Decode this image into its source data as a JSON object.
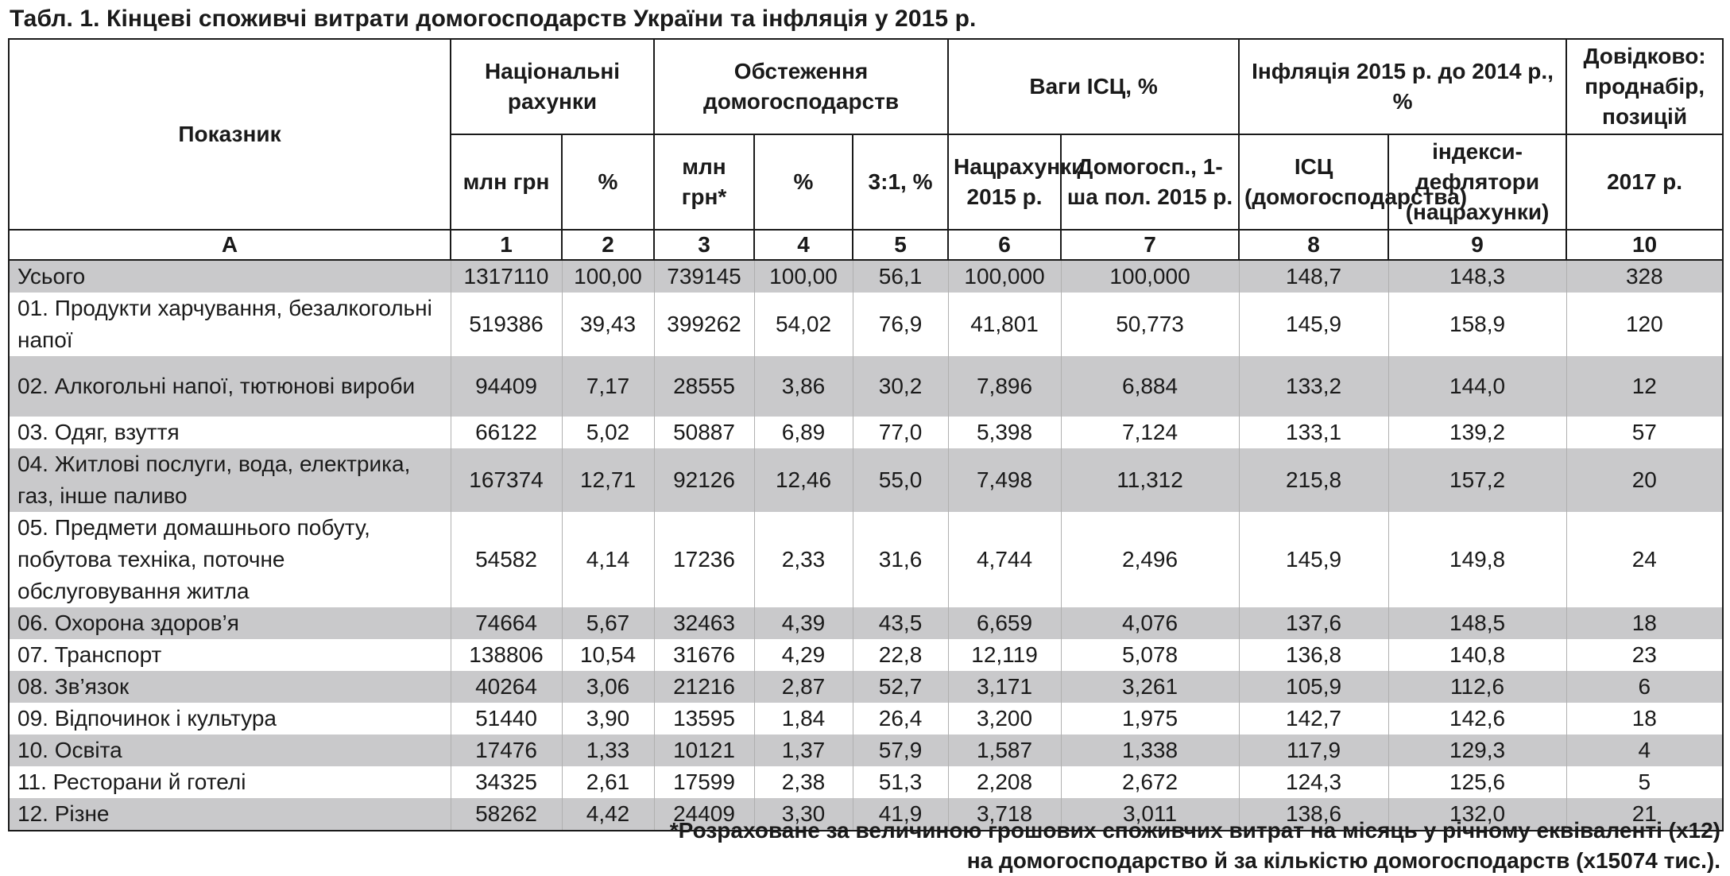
{
  "caption": "Табл. 1. Кінцеві споживчі витрати домогосподарств України та інфляція у 2015 р.",
  "header": {
    "indicator": "Показник",
    "groups": {
      "national_accounts": "Національні рахунки",
      "household_survey": "Обстеження домогосподарств",
      "cpi_weights": "Ваги ІСЦ, %",
      "inflation": "Інфляція 2015 р. до 2014 р., %",
      "reference": "Довідково: проднабір, позицій"
    },
    "sub": {
      "c1": "млн грн",
      "c2": "%",
      "c3": "млн грн*",
      "c4": "%",
      "c5": "3:1, %",
      "c6": "Нацрахунки 2015 р.",
      "c7": "Домогосп., 1-ша пол. 2015 р.",
      "c8": "ІСЦ (домогосподарства)",
      "c9": "індекси-дефлятори (нацрахунки)",
      "c10": "2017 р."
    },
    "numbers": [
      "А",
      "1",
      "2",
      "3",
      "4",
      "5",
      "6",
      "7",
      "8",
      "9",
      "10"
    ]
  },
  "rows": [
    {
      "label": "Усього",
      "v": [
        "1317110",
        "100,00",
        "739145",
        "100,00",
        "56,1",
        "100,000",
        "100,000",
        "148,7",
        "148,3",
        "328"
      ]
    },
    {
      "label": "01. Продукти харчування, безалкогольні напої",
      "v": [
        "519386",
        "39,43",
        "399262",
        "54,02",
        "76,9",
        "41,801",
        "50,773",
        "145,9",
        "158,9",
        "120"
      ]
    },
    {
      "label": "02. Алкогольні напої, тютюнові вироби",
      "v": [
        "94409",
        "7,17",
        "28555",
        "3,86",
        "30,2",
        "7,896",
        "6,884",
        "133,2",
        "144,0",
        "12"
      ]
    },
    {
      "label": "03. Одяг, взуття",
      "v": [
        "66122",
        "5,02",
        "50887",
        "6,89",
        "77,0",
        "5,398",
        "7,124",
        "133,1",
        "139,2",
        "57"
      ]
    },
    {
      "label": "04. Житлові послуги, вода, електрика, газ, інше паливо",
      "v": [
        "167374",
        "12,71",
        "92126",
        "12,46",
        "55,0",
        "7,498",
        "11,312",
        "215,8",
        "157,2",
        "20"
      ]
    },
    {
      "label": "05. Предмети домашнього побуту, побутова техніка, поточне обслуговування житла",
      "v": [
        "54582",
        "4,14",
        "17236",
        "2,33",
        "31,6",
        "4,744",
        "2,496",
        "145,9",
        "149,8",
        "24"
      ]
    },
    {
      "label": "06. Охорона здоров’я",
      "v": [
        "74664",
        "5,67",
        "32463",
        "4,39",
        "43,5",
        "6,659",
        "4,076",
        "137,6",
        "148,5",
        "18"
      ]
    },
    {
      "label": "07. Транспорт",
      "v": [
        "138806",
        "10,54",
        "31676",
        "4,29",
        "22,8",
        "12,119",
        "5,078",
        "136,8",
        "140,8",
        "23"
      ]
    },
    {
      "label": "08. Зв’язок",
      "v": [
        "40264",
        "3,06",
        "21216",
        "2,87",
        "52,7",
        "3,171",
        "3,261",
        "105,9",
        "112,6",
        "6"
      ]
    },
    {
      "label": "09. Відпочинок і культура",
      "v": [
        "51440",
        "3,90",
        "13595",
        "1,84",
        "26,4",
        "3,200",
        "1,975",
        "142,7",
        "142,6",
        "18"
      ]
    },
    {
      "label": "10. Освіта",
      "v": [
        "17476",
        "1,33",
        "10121",
        "1,37",
        "57,9",
        "1,587",
        "1,338",
        "117,9",
        "129,3",
        "4"
      ]
    },
    {
      "label": "11. Ресторани й готелі",
      "v": [
        "34325",
        "2,61",
        "17599",
        "2,38",
        "51,3",
        "2,208",
        "2,672",
        "124,3",
        "125,6",
        "5"
      ]
    },
    {
      "label": "12. Різне",
      "v": [
        "58262",
        "4,42",
        "24409",
        "3,30",
        "41,9",
        "3,718",
        "3,011",
        "138,6",
        "132,0",
        "21"
      ]
    }
  ],
  "footnote": {
    "line1": "*Розраховане за величиною грошових споживчих витрат на місяць у річному еквіваленті (х12)",
    "line2": "на домогосподарство й за кількістю домогосподарств (х15074 тис.)."
  },
  "colors": {
    "shaded_row": "#c9c9cb",
    "rule": "#1a1a1a"
  }
}
